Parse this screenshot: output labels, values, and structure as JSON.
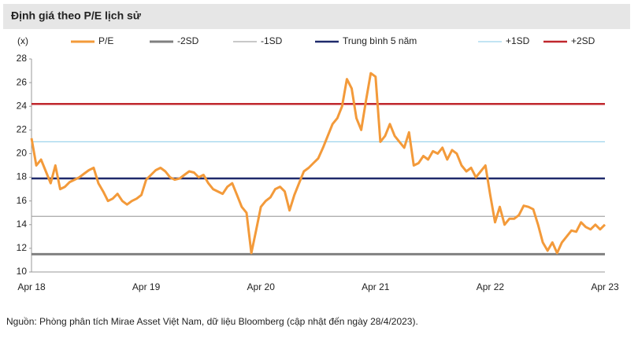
{
  "chart_data": {
    "type": "line",
    "title": "Định giá theo P/E lịch sử",
    "y_label": "(x)",
    "source": "Nguồn: Phòng phân tích Mirae Asset Việt Nam, dữ liệu Bloomberg (cập nhật đến ngày 28/4/2023).",
    "categories": [
      "Apr 18",
      null,
      null,
      null,
      null,
      null,
      null,
      null,
      null,
      null,
      null,
      null,
      null,
      null,
      null,
      null,
      null,
      null,
      null,
      null,
      null,
      null,
      null,
      null,
      "Apr 19",
      null,
      null,
      null,
      null,
      null,
      null,
      null,
      null,
      null,
      null,
      null,
      null,
      null,
      null,
      null,
      null,
      null,
      null,
      null,
      null,
      null,
      null,
      null,
      "Apr 20",
      null,
      null,
      null,
      null,
      null,
      null,
      null,
      null,
      null,
      null,
      null,
      null,
      null,
      null,
      null,
      null,
      null,
      null,
      null,
      null,
      null,
      null,
      null,
      "Apr 21",
      null,
      null,
      null,
      null,
      null,
      null,
      null,
      null,
      null,
      null,
      null,
      null,
      null,
      null,
      null,
      null,
      null,
      null,
      null,
      null,
      null,
      null,
      null,
      "Apr 22",
      null,
      null,
      null,
      null,
      null,
      null,
      null,
      null,
      null,
      null,
      null,
      null,
      null,
      null,
      null,
      null,
      null,
      null,
      null,
      null,
      null,
      null,
      null,
      "Apr 23"
    ],
    "series": [
      {
        "name": "P/E",
        "color": "#f39a3a",
        "values": [
          21.3,
          19.0,
          19.5,
          18.5,
          17.5,
          19.0,
          17.0,
          17.2,
          17.6,
          17.8,
          18.0,
          18.3,
          18.6,
          18.8,
          17.5,
          16.8,
          16.0,
          16.2,
          16.6,
          16.0,
          15.7,
          16.0,
          16.2,
          16.5,
          17.8,
          18.2,
          18.6,
          18.8,
          18.5,
          18.0,
          17.8,
          17.9,
          18.2,
          18.5,
          18.4,
          18.0,
          18.2,
          17.5,
          17.0,
          16.8,
          16.6,
          17.2,
          17.5,
          16.5,
          15.5,
          15.0,
          11.6,
          13.5,
          15.5,
          16.0,
          16.3,
          17.0,
          17.2,
          16.8,
          15.2,
          16.5,
          17.5,
          18.5,
          18.8,
          19.2,
          19.6,
          20.5,
          21.5,
          22.5,
          23.0,
          24.0,
          26.3,
          25.5,
          23.0,
          22.0,
          24.5,
          26.8,
          26.5,
          21.0,
          21.5,
          22.5,
          21.5,
          21.0,
          20.5,
          21.8,
          19.0,
          19.2,
          19.8,
          19.5,
          20.2,
          20.0,
          20.5,
          19.5,
          20.3,
          20.0,
          19.0,
          18.5,
          18.8,
          18.0,
          18.5,
          19.0,
          16.5,
          14.2,
          15.5,
          14.0,
          14.5,
          14.5,
          14.8,
          15.6,
          15.5,
          15.3,
          14.0,
          12.5,
          11.8,
          12.5,
          11.6,
          12.5,
          13.0,
          13.5,
          13.4,
          14.2,
          13.8,
          13.6,
          14.0,
          13.6,
          14.0
        ]
      }
    ],
    "reference_lines": [
      {
        "name": "-2SD",
        "color": "#808080",
        "value": 11.5
      },
      {
        "name": "-1SD",
        "color": "#a6a6a6",
        "value": 14.7
      },
      {
        "name": "Trung bình 5 năm",
        "color": "#1f2a6b",
        "value": 17.9
      },
      {
        "name": "+1SD",
        "color": "#9dd3ec",
        "value": 21.0
      },
      {
        "name": "+2SD",
        "color": "#c0272d",
        "value": 24.2
      }
    ],
    "ylim": [
      10,
      28
    ],
    "yticks": [
      10,
      12,
      14,
      16,
      18,
      20,
      22,
      24,
      26,
      28
    ]
  }
}
